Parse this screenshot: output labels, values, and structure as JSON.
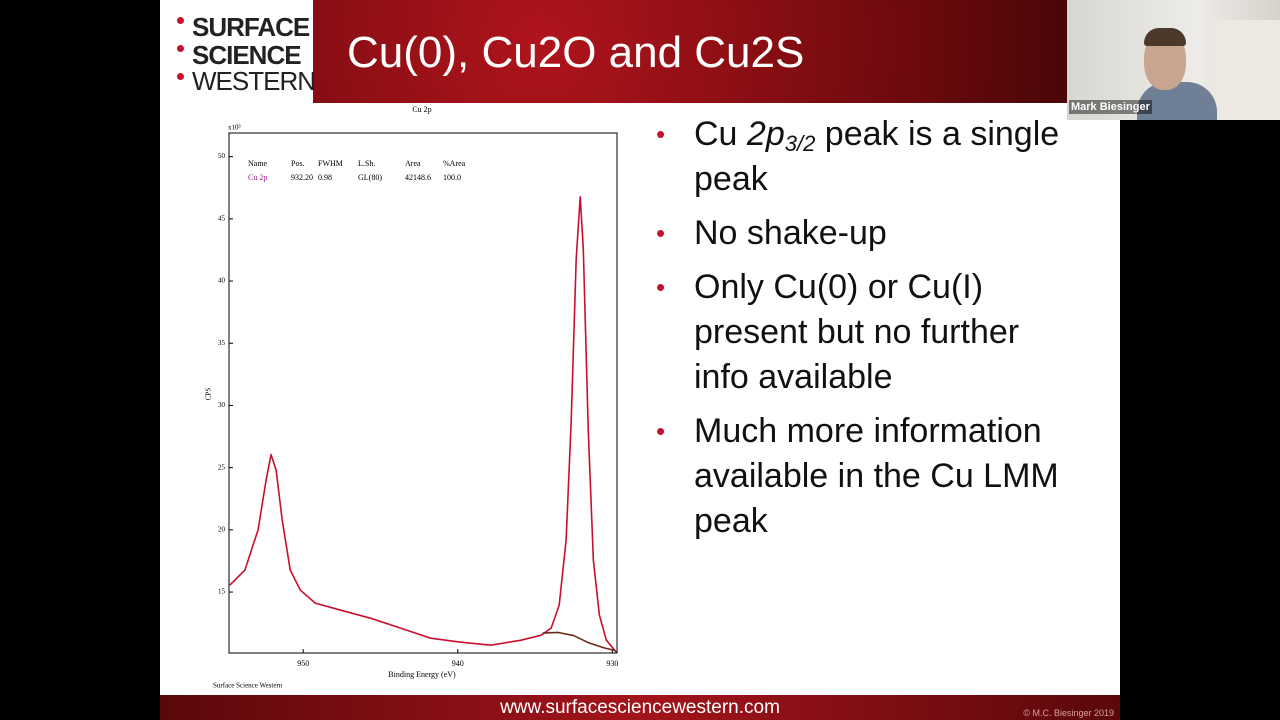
{
  "slide": {
    "logo": [
      "SURFACE",
      "SCIENCE",
      "WESTERN"
    ],
    "title": "Cu(0), Cu2O and Cu2S",
    "bullets": [
      {
        "parts": [
          "Cu ",
          "2p",
          "3/2",
          " peak is a single peak"
        ]
      },
      {
        "parts": [
          "No shake-up"
        ]
      },
      {
        "parts": [
          "Only Cu(0) or Cu(I) present but no further info available"
        ]
      },
      {
        "parts": [
          "Much more information available in the Cu LMM peak"
        ]
      }
    ],
    "footer_url": "www.surfacesciencewestern.com",
    "copyright": "© M.C. Biesinger 2019"
  },
  "participant": {
    "name": "Mark Biesinger"
  },
  "chart_data": {
    "type": "line",
    "title": "Cu 2p",
    "xlabel": "Binding Energy (eV)",
    "ylabel": "CPS",
    "y_multiplier": "x10³",
    "source": "Surface Science Western",
    "fit_table": {
      "columns": [
        "Name",
        "Pos.",
        "FWHM",
        "L.Sh.",
        "Area",
        "%Area"
      ],
      "rows": [
        [
          "Cu 2p",
          "932.20",
          "0.98",
          "GL(80)",
          "42148.6",
          "100.0"
        ]
      ]
    },
    "xlim": [
      954.8,
      929.7
    ],
    "ylim": [
      10.1,
      51.9
    ],
    "xticks": [
      950,
      940,
      930
    ],
    "yticks": [
      15,
      20,
      25,
      30,
      35,
      40,
      45,
      50
    ],
    "series": [
      {
        "color": "#c8102e",
        "x": [
          954.74,
          953.77,
          952.92,
          952.4,
          952.08,
          951.75,
          951.36,
          950.84,
          950.19,
          949.22,
          947.6,
          945.65,
          943.7,
          941.75,
          939.81,
          937.86,
          935.91,
          934.61,
          933.96,
          933.44,
          932.99,
          932.66,
          932.34,
          932.08,
          931.88,
          931.56,
          931.23,
          930.84,
          930.39,
          929.74
        ],
        "values": [
          15.56,
          16.77,
          20.0,
          24.0,
          26.05,
          24.8,
          20.8,
          16.77,
          15.16,
          14.11,
          13.55,
          12.9,
          12.1,
          11.29,
          10.97,
          10.73,
          11.13,
          11.53,
          12.1,
          13.95,
          19.19,
          28.87,
          41.77,
          46.77,
          42.58,
          28.06,
          17.58,
          13.15,
          11.13,
          10.16
        ]
      },
      {
        "color": "#6b2a14",
        "x": [
          934.5,
          933.5,
          932.5,
          931.5,
          930.5,
          929.8
        ],
        "values": [
          11.7,
          11.75,
          11.5,
          10.9,
          10.5,
          10.3
        ]
      }
    ]
  }
}
